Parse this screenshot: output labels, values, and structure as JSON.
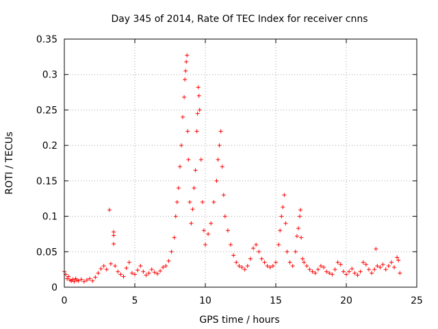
{
  "chart_data": {
    "type": "scatter",
    "title": "Day 345 of 2014, Rate Of TEC Index for receiver cnns",
    "xlabel": "GPS time / hours",
    "ylabel": "ROTI / TECUs",
    "xlim": [
      0,
      25
    ],
    "ylim": [
      0,
      0.35
    ],
    "x_ticks": [
      0,
      5,
      10,
      15,
      20,
      25
    ],
    "x_tick_labels": [
      "0",
      "5",
      "10",
      "15",
      "20",
      "25"
    ],
    "y_ticks": [
      0,
      0.05,
      0.1,
      0.15,
      0.2,
      0.25,
      0.3,
      0.35
    ],
    "y_tick_labels": [
      "0",
      "0.05",
      "0.1",
      "0.15",
      "0.2",
      "0.25",
      "0.3",
      "0.35"
    ],
    "grid": true,
    "marker": "+",
    "color": "#ff0000",
    "series": [
      {
        "name": "ROTI",
        "points": [
          [
            0.0,
            0.022
          ],
          [
            0.1,
            0.018
          ],
          [
            0.2,
            0.012
          ],
          [
            0.3,
            0.015
          ],
          [
            0.4,
            0.01
          ],
          [
            0.5,
            0.009
          ],
          [
            0.6,
            0.011
          ],
          [
            0.7,
            0.008
          ],
          [
            0.8,
            0.012
          ],
          [
            0.9,
            0.01
          ],
          [
            1.0,
            0.009
          ],
          [
            1.2,
            0.011
          ],
          [
            1.4,
            0.008
          ],
          [
            1.6,
            0.01
          ],
          [
            1.8,
            0.012
          ],
          [
            2.0,
            0.009
          ],
          [
            2.2,
            0.014
          ],
          [
            2.4,
            0.02
          ],
          [
            2.6,
            0.026
          ],
          [
            2.8,
            0.03
          ],
          [
            3.0,
            0.025
          ],
          [
            3.2,
            0.109
          ],
          [
            3.3,
            0.033
          ],
          [
            3.5,
            0.078
          ],
          [
            3.5,
            0.073
          ],
          [
            3.5,
            0.061
          ],
          [
            3.6,
            0.03
          ],
          [
            3.8,
            0.022
          ],
          [
            4.0,
            0.018
          ],
          [
            4.2,
            0.015
          ],
          [
            4.4,
            0.027
          ],
          [
            4.6,
            0.035
          ],
          [
            4.8,
            0.02
          ],
          [
            5.0,
            0.018
          ],
          [
            5.2,
            0.024
          ],
          [
            5.4,
            0.03
          ],
          [
            5.6,
            0.022
          ],
          [
            5.8,
            0.017
          ],
          [
            6.0,
            0.02
          ],
          [
            6.2,
            0.025
          ],
          [
            6.4,
            0.021
          ],
          [
            6.6,
            0.019
          ],
          [
            6.8,
            0.023
          ],
          [
            7.0,
            0.028
          ],
          [
            7.2,
            0.03
          ],
          [
            7.4,
            0.037
          ],
          [
            7.6,
            0.05
          ],
          [
            7.8,
            0.07
          ],
          [
            7.9,
            0.1
          ],
          [
            8.0,
            0.12
          ],
          [
            8.1,
            0.14
          ],
          [
            8.2,
            0.17
          ],
          [
            8.3,
            0.2
          ],
          [
            8.4,
            0.24
          ],
          [
            8.5,
            0.268
          ],
          [
            8.55,
            0.293
          ],
          [
            8.6,
            0.305
          ],
          [
            8.65,
            0.318
          ],
          [
            8.7,
            0.327
          ],
          [
            8.75,
            0.22
          ],
          [
            8.8,
            0.18
          ],
          [
            8.9,
            0.12
          ],
          [
            9.0,
            0.09
          ],
          [
            9.1,
            0.11
          ],
          [
            9.2,
            0.14
          ],
          [
            9.3,
            0.165
          ],
          [
            9.4,
            0.22
          ],
          [
            9.45,
            0.245
          ],
          [
            9.5,
            0.282
          ],
          [
            9.55,
            0.27
          ],
          [
            9.6,
            0.25
          ],
          [
            9.7,
            0.18
          ],
          [
            9.8,
            0.12
          ],
          [
            9.9,
            0.08
          ],
          [
            10.0,
            0.06
          ],
          [
            10.2,
            0.075
          ],
          [
            10.4,
            0.09
          ],
          [
            10.6,
            0.12
          ],
          [
            10.8,
            0.15
          ],
          [
            10.9,
            0.18
          ],
          [
            11.0,
            0.2
          ],
          [
            11.1,
            0.22
          ],
          [
            11.2,
            0.17
          ],
          [
            11.3,
            0.13
          ],
          [
            11.4,
            0.1
          ],
          [
            11.6,
            0.08
          ],
          [
            11.8,
            0.06
          ],
          [
            12.0,
            0.045
          ],
          [
            12.2,
            0.035
          ],
          [
            12.4,
            0.03
          ],
          [
            12.6,
            0.028
          ],
          [
            12.8,
            0.025
          ],
          [
            13.0,
            0.03
          ],
          [
            13.2,
            0.04
          ],
          [
            13.4,
            0.055
          ],
          [
            13.6,
            0.06
          ],
          [
            13.8,
            0.05
          ],
          [
            14.0,
            0.04
          ],
          [
            14.2,
            0.035
          ],
          [
            14.4,
            0.03
          ],
          [
            14.6,
            0.028
          ],
          [
            14.8,
            0.03
          ],
          [
            15.0,
            0.035
          ],
          [
            15.2,
            0.06
          ],
          [
            15.3,
            0.08
          ],
          [
            15.4,
            0.1
          ],
          [
            15.5,
            0.113
          ],
          [
            15.6,
            0.13
          ],
          [
            15.7,
            0.09
          ],
          [
            15.8,
            0.05
          ],
          [
            16.0,
            0.035
          ],
          [
            16.2,
            0.03
          ],
          [
            16.4,
            0.05
          ],
          [
            16.5,
            0.072
          ],
          [
            16.6,
            0.083
          ],
          [
            16.7,
            0.1
          ],
          [
            16.75,
            0.109
          ],
          [
            16.8,
            0.07
          ],
          [
            16.9,
            0.04
          ],
          [
            17.0,
            0.035
          ],
          [
            17.2,
            0.03
          ],
          [
            17.4,
            0.025
          ],
          [
            17.6,
            0.022
          ],
          [
            17.8,
            0.02
          ],
          [
            18.0,
            0.025
          ],
          [
            18.2,
            0.03
          ],
          [
            18.4,
            0.028
          ],
          [
            18.6,
            0.022
          ],
          [
            18.8,
            0.02
          ],
          [
            19.0,
            0.018
          ],
          [
            19.2,
            0.025
          ],
          [
            19.4,
            0.035
          ],
          [
            19.6,
            0.032
          ],
          [
            19.8,
            0.022
          ],
          [
            20.0,
            0.018
          ],
          [
            20.2,
            0.022
          ],
          [
            20.4,
            0.026
          ],
          [
            20.6,
            0.02
          ],
          [
            20.8,
            0.017
          ],
          [
            21.0,
            0.022
          ],
          [
            21.2,
            0.035
          ],
          [
            21.4,
            0.032
          ],
          [
            21.6,
            0.025
          ],
          [
            21.8,
            0.02
          ],
          [
            22.0,
            0.025
          ],
          [
            22.1,
            0.054
          ],
          [
            22.2,
            0.03
          ],
          [
            22.4,
            0.028
          ],
          [
            22.6,
            0.032
          ],
          [
            22.8,
            0.025
          ],
          [
            23.0,
            0.03
          ],
          [
            23.2,
            0.035
          ],
          [
            23.4,
            0.028
          ],
          [
            23.6,
            0.042
          ],
          [
            23.7,
            0.038
          ],
          [
            23.8,
            0.02
          ]
        ]
      }
    ]
  }
}
